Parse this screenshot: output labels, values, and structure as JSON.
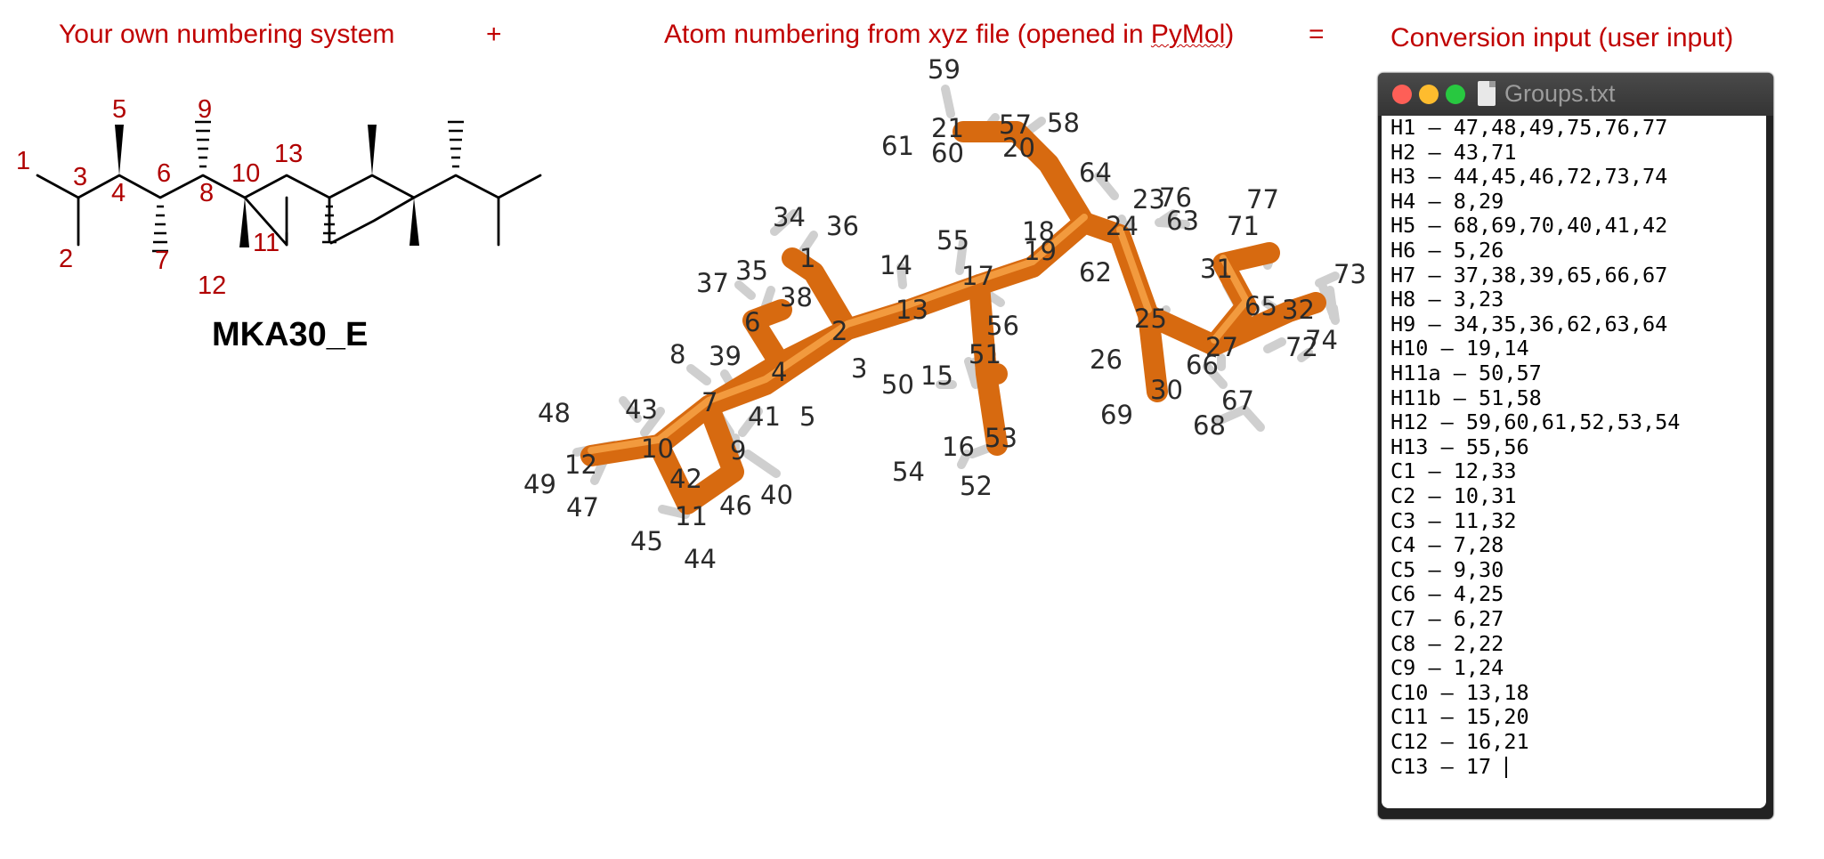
{
  "headers": {
    "left": "Your own numbering system",
    "plus": "+",
    "middle_prefix": "Atom numbering from xyz file (opened in ",
    "middle_pymol": "PyMol",
    "middle_suffix": ")",
    "equals": "=",
    "right": "Conversion input (user input)"
  },
  "structure": {
    "title": "MKA30_E",
    "labels": [
      "1",
      "2",
      "3",
      "4",
      "5",
      "6",
      "7",
      "8",
      "9",
      "10",
      "11",
      "12",
      "13"
    ]
  },
  "pymol_labels": [
    "1",
    "2",
    "3",
    "4",
    "5",
    "6",
    "7",
    "8",
    "9",
    "10",
    "11",
    "12",
    "13",
    "14",
    "15",
    "16",
    "17",
    "18",
    "19",
    "20",
    "21",
    "23",
    "24",
    "25",
    "26",
    "27",
    "30",
    "31",
    "32",
    "34",
    "35",
    "36",
    "37",
    "38",
    "39",
    "40",
    "41",
    "42",
    "43",
    "44",
    "45",
    "46",
    "47",
    "48",
    "49",
    "50",
    "51",
    "52",
    "53",
    "54",
    "55",
    "56",
    "57",
    "58",
    "59",
    "60",
    "61",
    "62",
    "63",
    "64",
    "65",
    "66",
    "67",
    "68",
    "69",
    "71",
    "72",
    "73",
    "74",
    "76",
    "77"
  ],
  "window": {
    "filename": "Groups.txt",
    "lines": [
      "H1 – 47,48,49,75,76,77",
      "H2 – 43,71",
      "H3 – 44,45,46,72,73,74",
      "H4 – 8,29",
      "H5 – 68,69,70,40,41,42",
      "H6 – 5,26",
      "H7 – 37,38,39,65,66,67",
      "H8 – 3,23",
      "H9 – 34,35,36,62,63,64",
      "H10 – 19,14",
      "H11a – 50,57",
      "H11b – 51,58",
      "H12 – 59,60,61,52,53,54",
      "H13 – 55,56",
      "C1 – 12,33",
      "C2 – 10,31",
      "C3 – 11,32",
      "C4 – 7,28",
      "C5 – 9,30",
      "C6 – 4,25",
      "C7 – 6,27",
      "C8 – 2,22",
      "C9 – 1,24",
      "C10 – 13,18",
      "C11 – 15,20",
      "C12 – 16,21",
      "C13 – 17 "
    ]
  }
}
